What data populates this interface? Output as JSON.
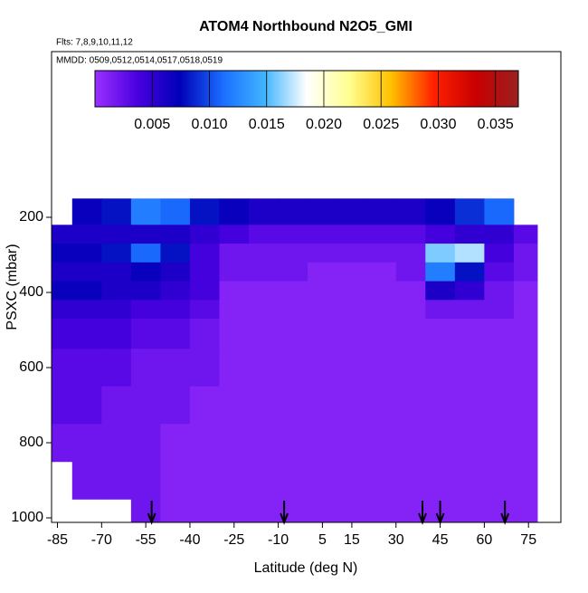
{
  "chart_data": {
    "type": "heatmap",
    "title": "ATOM4 Northbound N2O5_GMI",
    "subtitle": "Flts: 7,8,9,10,11,12",
    "note": "MMDD: 0509,0512,0514,0517,0518,0519",
    "x_label": "Latitude (deg N)",
    "y_label": "PSXC (mbar)",
    "xlim": [
      -87,
      86
    ],
    "xticks": [
      -85,
      -70,
      -55,
      -40,
      -25,
      -10,
      5,
      15,
      30,
      45,
      60,
      75
    ],
    "ylim": [
      1012,
      -241
    ],
    "yticks": [
      200,
      400,
      600,
      800,
      1000
    ],
    "x_edges": [
      -87,
      -80,
      -70,
      -60,
      -50,
      -40,
      -30,
      -20,
      -10,
      0,
      10,
      20,
      30,
      40,
      50,
      60,
      70,
      78
    ],
    "y_edges": [
      150,
      220,
      270,
      320,
      370,
      420,
      470,
      550,
      650,
      750,
      850,
      950,
      1012
    ],
    "z": [
      [
        null,
        0.007,
        0.008,
        0.012,
        0.011,
        0.008,
        0.007,
        0.006,
        0.006,
        0.006,
        0.006,
        0.006,
        0.006,
        0.007,
        0.009,
        0.011,
        null
      ],
      [
        0.006,
        0.006,
        0.006,
        0.006,
        0.006,
        0.005,
        0.004,
        0.003,
        0.003,
        0.003,
        0.003,
        0.003,
        0.003,
        0.004,
        0.005,
        0.005,
        0.003
      ],
      [
        0.007,
        0.007,
        0.008,
        0.011,
        0.008,
        0.004,
        0.002,
        0.002,
        0.002,
        0.002,
        0.002,
        0.002,
        0.002,
        0.016,
        0.017,
        0.004,
        0.002
      ],
      [
        0.006,
        0.006,
        0.006,
        0.007,
        0.006,
        0.004,
        0.002,
        0.002,
        0.002,
        0.001,
        0.001,
        0.001,
        0.002,
        0.012,
        0.008,
        0.003,
        0.002
      ],
      [
        0.007,
        0.007,
        0.006,
        0.006,
        0.005,
        0.004,
        0.001,
        0.001,
        0.001,
        0.001,
        0.001,
        0.001,
        0.001,
        0.006,
        0.005,
        0.002,
        0.001
      ],
      [
        0.005,
        0.005,
        0.005,
        0.004,
        0.004,
        0.003,
        0.001,
        0.001,
        0.001,
        0.001,
        0.001,
        0.001,
        0.001,
        0.002,
        0.002,
        0.002,
        0.001
      ],
      [
        0.004,
        0.004,
        0.004,
        0.003,
        0.003,
        0.002,
        0.001,
        0.001,
        0.001,
        0.001,
        0.001,
        0.001,
        0.001,
        0.001,
        0.001,
        0.001,
        0.001
      ],
      [
        0.003,
        0.003,
        0.003,
        0.002,
        0.002,
        0.002,
        0.001,
        0.001,
        0.001,
        0.001,
        0.001,
        0.001,
        0.001,
        0.001,
        0.001,
        0.001,
        0.001
      ],
      [
        0.003,
        0.003,
        0.002,
        0.002,
        0.002,
        0.001,
        0.001,
        0.001,
        0.001,
        0.001,
        0.001,
        0.001,
        0.001,
        0.001,
        0.001,
        0.001,
        0.001
      ],
      [
        0.002,
        0.002,
        0.002,
        0.002,
        0.001,
        0.001,
        0.001,
        0.001,
        0.001,
        0.001,
        0.001,
        0.001,
        0.001,
        0.001,
        0.001,
        0.001,
        0.001
      ],
      [
        null,
        0.002,
        0.002,
        0.002,
        0.001,
        0.001,
        0.001,
        0.001,
        0.001,
        0.001,
        0.001,
        0.001,
        0.001,
        0.001,
        0.001,
        0.001,
        0.001
      ],
      [
        null,
        null,
        null,
        0.002,
        0.001,
        0.001,
        0.001,
        0.001,
        0.001,
        0.001,
        0.001,
        0.001,
        0.001,
        0.001,
        0.001,
        0.001,
        0.001
      ]
    ],
    "clim": [
      0,
      0.037
    ],
    "cticks": [
      0.005,
      {
        "value": 0.01,
        "label": "0.010"
      },
      0.015,
      {
        "value": 0.02,
        "label": "0.020"
      },
      0.025,
      {
        "value": 0.03,
        "label": "0.030"
      },
      0.035
    ],
    "colors": [
      "#9b30ff",
      "#4a00e0",
      "#0000b8",
      "#1a6cff",
      "#40b4ff",
      "#ffffff",
      "#ffff90",
      "#ffc000",
      "#ff2000",
      "#c80000",
      "#9a2020"
    ],
    "flight_markers": [
      -53,
      -8,
      39,
      45,
      67
    ]
  }
}
